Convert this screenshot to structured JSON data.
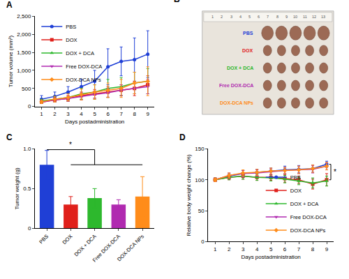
{
  "chart_data": [
    {
      "panel": "A",
      "type": "line",
      "x_label": "Days postadministration",
      "y_label": "Tumor volume (mm³)",
      "x": [
        1,
        2,
        3,
        4,
        5,
        6,
        7,
        8,
        9
      ],
      "xlim": [
        0.5,
        9.5
      ],
      "xticks": [
        1,
        2,
        3,
        4,
        5,
        6,
        7,
        8,
        9
      ],
      "ylim": [
        0,
        2500
      ],
      "yticks": [
        0,
        500,
        {
          "value": 1000,
          "label": "1,000"
        },
        {
          "value": 1500,
          "label": "1,500"
        },
        {
          "value": 2000,
          "label": "2,000"
        },
        {
          "value": 2500,
          "label": "2,500"
        }
      ],
      "grid": false,
      "legend": "upper left",
      "series": [
        {
          "name": "PBS",
          "color": "#1f3fd6",
          "marker": "circle",
          "values": [
            200,
            280,
            400,
            550,
            700,
            1100,
            1250,
            1300,
            1450
          ],
          "errors": [
            100,
            120,
            150,
            200,
            300,
            500,
            400,
            600,
            650
          ]
        },
        {
          "name": "DOX",
          "color": "#e0201b",
          "marker": "square",
          "values": [
            120,
            180,
            220,
            300,
            350,
            400,
            450,
            500,
            600
          ],
          "errors": [
            40,
            60,
            80,
            100,
            120,
            150,
            150,
            200,
            250
          ]
        },
        {
          "name": "DOX + DCA",
          "color": "#2db82d",
          "marker": "triangle-up",
          "values": [
            150,
            200,
            250,
            350,
            400,
            500,
            550,
            650,
            700
          ],
          "errors": [
            50,
            80,
            100,
            150,
            200,
            250,
            250,
            300,
            350
          ]
        },
        {
          "name": "Free DOX-DCA",
          "color": "#b02ab0",
          "marker": "triangle-down",
          "values": [
            120,
            180,
            220,
            280,
            330,
            380,
            450,
            500,
            550
          ],
          "errors": [
            40,
            60,
            80,
            100,
            100,
            120,
            150,
            150,
            200
          ]
        },
        {
          "name": "DOX-DCA NPs",
          "color": "#ff8c1a",
          "marker": "diamond",
          "values": [
            130,
            200,
            250,
            330,
            400,
            450,
            500,
            650,
            700
          ],
          "errors": [
            50,
            80,
            100,
            150,
            200,
            200,
            250,
            300,
            400
          ]
        }
      ]
    },
    {
      "panel": "B",
      "type": "photo",
      "ruler": [
        1,
        2,
        3,
        4,
        5,
        6,
        7,
        8,
        9,
        10,
        11,
        12,
        13
      ],
      "rows": [
        {
          "name": "PBS",
          "color": "#1f3fd6"
        },
        {
          "name": "DOX",
          "color": "#e0201b"
        },
        {
          "name": "DOX + DCA",
          "color": "#2db82d"
        },
        {
          "name": "Free DOX-DCA",
          "color": "#b02ab0"
        },
        {
          "name": "DOX-DCA NPs",
          "color": "#ff8c1a"
        }
      ]
    },
    {
      "panel": "C",
      "type": "bar",
      "y_label": "Tumor weight (g)",
      "categories": [
        "PBS",
        "DOX",
        "DOX + DCA",
        "Free DOX-DCA",
        "DOX-DCA NPs"
      ],
      "values": [
        0.8,
        0.3,
        0.38,
        0.3,
        0.4
      ],
      "errors": [
        0.18,
        0.1,
        0.12,
        0.06,
        0.25
      ],
      "colors": [
        "#1f3fd6",
        "#e0201b",
        "#2db82d",
        "#b02ab0",
        "#ff8c1a"
      ],
      "ylim": [
        0,
        1.0
      ],
      "yticks": [
        0,
        0.5,
        {
          "value": 1.0,
          "label": "1.0"
        }
      ],
      "grid": false,
      "annotations": [
        "*"
      ]
    },
    {
      "panel": "D",
      "type": "line",
      "x_label": "Days postadministration",
      "y_label": "Relative body weight change (%)",
      "x": [
        1,
        2,
        3,
        4,
        5,
        6,
        7,
        8,
        9
      ],
      "xlim": [
        0.5,
        9.5
      ],
      "xticks": [
        1,
        2,
        3,
        4,
        5,
        6,
        7,
        8,
        9
      ],
      "ylim": [
        0,
        150
      ],
      "yticks": [
        0,
        50,
        100,
        150
      ],
      "grid": false,
      "legend": "lower right",
      "annotations": [
        "*"
      ],
      "series": [
        {
          "name": "PBS",
          "color": "#1f3fd6",
          "marker": "circle",
          "values": [
            100,
            106,
            110,
            112,
            114,
            116,
            117,
            118,
            125
          ],
          "errors": [
            3,
            4,
            5,
            5,
            5,
            6,
            6,
            6,
            5
          ]
        },
        {
          "name": "DOX",
          "color": "#e0201b",
          "marker": "square",
          "values": [
            100,
            104,
            106,
            104,
            104,
            102,
            100,
            93,
            100
          ],
          "errors": [
            3,
            4,
            5,
            5,
            5,
            6,
            6,
            8,
            10
          ]
        },
        {
          "name": "DOX + DCA",
          "color": "#2db82d",
          "marker": "triangle-up",
          "values": [
            100,
            104,
            106,
            104,
            103,
            101,
            98,
            95,
            98
          ],
          "errors": [
            3,
            4,
            5,
            5,
            5,
            6,
            6,
            8,
            8
          ]
        },
        {
          "name": "Free DOX-DCA",
          "color": "#b02ab0",
          "marker": "triangle-down",
          "values": [
            100,
            107,
            110,
            111,
            113,
            115,
            116,
            117,
            122
          ],
          "errors": [
            3,
            4,
            5,
            5,
            5,
            5,
            6,
            6,
            6
          ]
        },
        {
          "name": "DOX-DCA NPs",
          "color": "#ff8c1a",
          "marker": "diamond",
          "values": [
            100,
            107,
            111,
            112,
            114,
            115,
            116,
            118,
            122
          ],
          "errors": [
            3,
            4,
            5,
            5,
            5,
            5,
            6,
            6,
            6
          ]
        }
      ]
    }
  ]
}
